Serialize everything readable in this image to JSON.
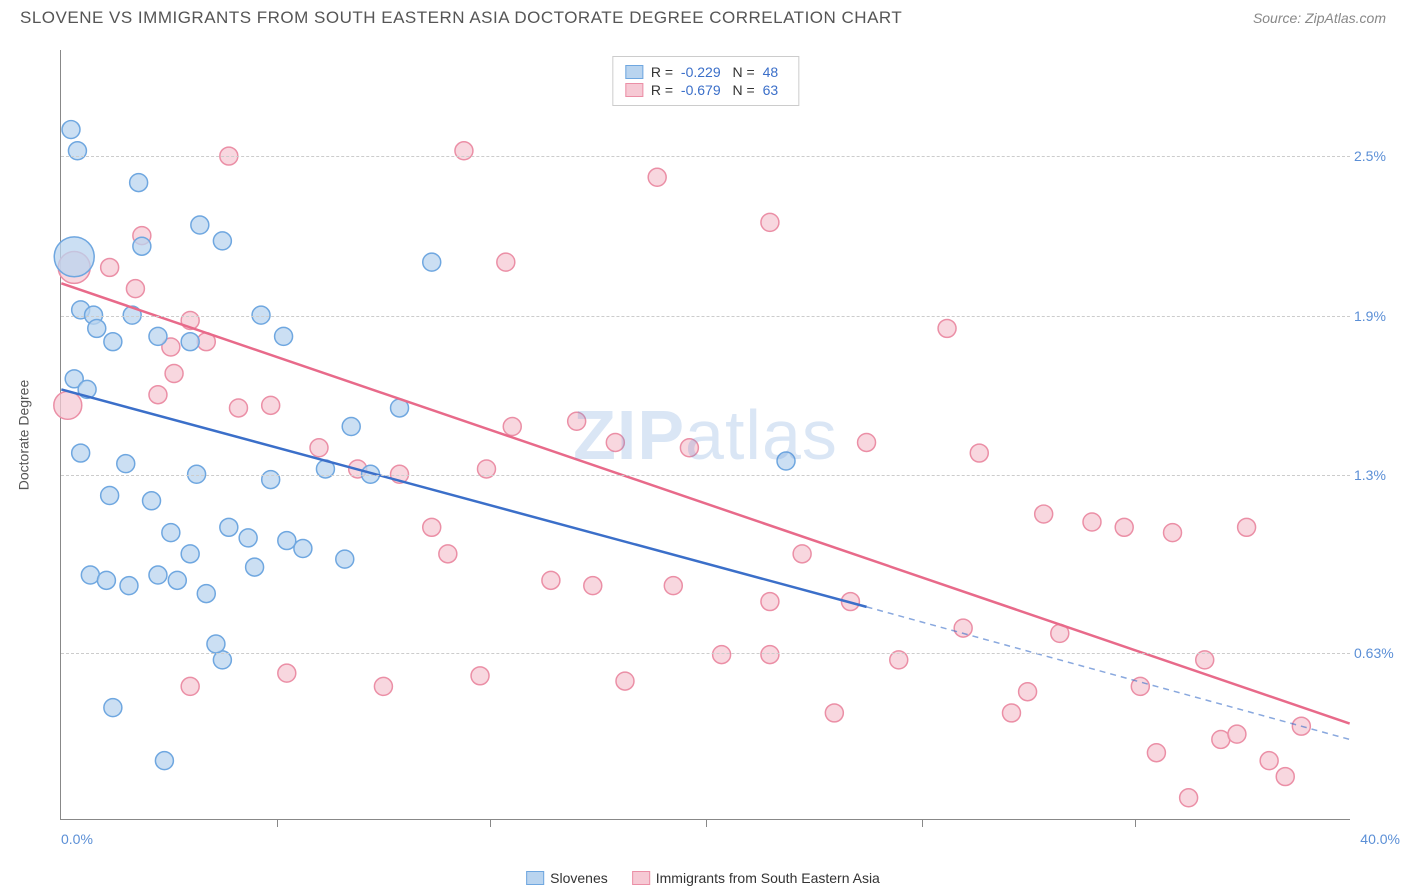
{
  "title": "SLOVENE VS IMMIGRANTS FROM SOUTH EASTERN ASIA DOCTORATE DEGREE CORRELATION CHART",
  "source_label": "Source:",
  "source_name": "ZipAtlas.com",
  "ylabel": "Doctorate Degree",
  "watermark": "ZIPatlas",
  "chart": {
    "type": "scatter",
    "xlim": [
      0,
      40
    ],
    "ylim": [
      0,
      2.9
    ],
    "x_min_label": "0.0%",
    "x_max_label": "40.0%",
    "xticks": [
      6.7,
      13.3,
      20,
      26.7,
      33.3
    ],
    "yticks": [
      {
        "v": 0.63,
        "label": "0.63%"
      },
      {
        "v": 1.3,
        "label": "1.3%"
      },
      {
        "v": 1.9,
        "label": "1.9%"
      },
      {
        "v": 2.5,
        "label": "2.5%"
      }
    ],
    "background_color": "#ffffff",
    "grid_color": "#cccccc",
    "series": [
      {
        "key": "slovenes",
        "label": "Slovenes",
        "fill": "#b9d4ef",
        "stroke": "#6fa7e0",
        "line_color": "#3b6fc9",
        "r_value": "-0.229",
        "n_value": "48",
        "trend": {
          "x1": 0,
          "y1": 1.62,
          "x2": 25,
          "y2": 0.8,
          "dash_x2": 40,
          "dash_y2": 0.3
        },
        "points": [
          {
            "x": 0.3,
            "y": 2.6,
            "r": 9
          },
          {
            "x": 0.5,
            "y": 2.52,
            "r": 9
          },
          {
            "x": 0.4,
            "y": 2.12,
            "r": 20
          },
          {
            "x": 2.4,
            "y": 2.4,
            "r": 9
          },
          {
            "x": 2.5,
            "y": 2.16,
            "r": 9
          },
          {
            "x": 4.3,
            "y": 2.24,
            "r": 9
          },
          {
            "x": 5.0,
            "y": 2.18,
            "r": 9
          },
          {
            "x": 0.6,
            "y": 1.92,
            "r": 9
          },
          {
            "x": 1.0,
            "y": 1.9,
            "r": 9
          },
          {
            "x": 0.4,
            "y": 1.66,
            "r": 9
          },
          {
            "x": 0.8,
            "y": 1.62,
            "r": 9
          },
          {
            "x": 1.1,
            "y": 1.85,
            "r": 9
          },
          {
            "x": 1.6,
            "y": 1.8,
            "r": 9
          },
          {
            "x": 2.2,
            "y": 1.9,
            "r": 9
          },
          {
            "x": 3.0,
            "y": 1.82,
            "r": 9
          },
          {
            "x": 4.0,
            "y": 1.8,
            "r": 9
          },
          {
            "x": 6.2,
            "y": 1.9,
            "r": 9
          },
          {
            "x": 6.9,
            "y": 1.82,
            "r": 9
          },
          {
            "x": 0.6,
            "y": 1.38,
            "r": 9
          },
          {
            "x": 1.5,
            "y": 1.22,
            "r": 9
          },
          {
            "x": 2.0,
            "y": 1.34,
            "r": 9
          },
          {
            "x": 2.8,
            "y": 1.2,
            "r": 9
          },
          {
            "x": 3.4,
            "y": 1.08,
            "r": 9
          },
          {
            "x": 4.2,
            "y": 1.3,
            "r": 9
          },
          {
            "x": 4.0,
            "y": 1.0,
            "r": 9
          },
          {
            "x": 5.2,
            "y": 1.1,
            "r": 9
          },
          {
            "x": 5.8,
            "y": 1.06,
            "r": 9
          },
          {
            "x": 6.5,
            "y": 1.28,
            "r": 9
          },
          {
            "x": 7.0,
            "y": 1.05,
            "r": 9
          },
          {
            "x": 8.2,
            "y": 1.32,
            "r": 9
          },
          {
            "x": 9.0,
            "y": 1.48,
            "r": 9
          },
          {
            "x": 9.6,
            "y": 1.3,
            "r": 9
          },
          {
            "x": 10.5,
            "y": 1.55,
            "r": 9
          },
          {
            "x": 11.5,
            "y": 2.1,
            "r": 9
          },
          {
            "x": 0.9,
            "y": 0.92,
            "r": 9
          },
          {
            "x": 1.4,
            "y": 0.9,
            "r": 9
          },
          {
            "x": 2.1,
            "y": 0.88,
            "r": 9
          },
          {
            "x": 3.0,
            "y": 0.92,
            "r": 9
          },
          {
            "x": 3.6,
            "y": 0.9,
            "r": 9
          },
          {
            "x": 4.5,
            "y": 0.85,
            "r": 9
          },
          {
            "x": 5.0,
            "y": 0.6,
            "r": 9
          },
          {
            "x": 6.0,
            "y": 0.95,
            "r": 9
          },
          {
            "x": 7.5,
            "y": 1.02,
            "r": 9
          },
          {
            "x": 8.8,
            "y": 0.98,
            "r": 9
          },
          {
            "x": 1.6,
            "y": 0.42,
            "r": 9
          },
          {
            "x": 3.2,
            "y": 0.22,
            "r": 9
          },
          {
            "x": 4.8,
            "y": 0.66,
            "r": 9
          },
          {
            "x": 22.5,
            "y": 1.35,
            "r": 9
          }
        ]
      },
      {
        "key": "immigrants",
        "label": "Immigrants from South Eastern Asia",
        "fill": "#f6c9d4",
        "stroke": "#eb8fa6",
        "line_color": "#e86a8a",
        "r_value": "-0.679",
        "n_value": "63",
        "trend": {
          "x1": 0,
          "y1": 2.02,
          "x2": 40,
          "y2": 0.36
        },
        "points": [
          {
            "x": 0.4,
            "y": 2.08,
            "r": 16
          },
          {
            "x": 0.2,
            "y": 1.56,
            "r": 14
          },
          {
            "x": 1.5,
            "y": 2.08,
            "r": 9
          },
          {
            "x": 2.3,
            "y": 2.0,
            "r": 9
          },
          {
            "x": 2.5,
            "y": 2.2,
            "r": 9
          },
          {
            "x": 3.4,
            "y": 1.78,
            "r": 9
          },
          {
            "x": 4.0,
            "y": 1.88,
            "r": 9
          },
          {
            "x": 4.5,
            "y": 1.8,
            "r": 9
          },
          {
            "x": 5.2,
            "y": 2.5,
            "r": 9
          },
          {
            "x": 12.5,
            "y": 2.52,
            "r": 9
          },
          {
            "x": 18.5,
            "y": 2.42,
            "r": 9
          },
          {
            "x": 22.0,
            "y": 2.25,
            "r": 9
          },
          {
            "x": 13.8,
            "y": 2.1,
            "r": 9
          },
          {
            "x": 3.0,
            "y": 1.6,
            "r": 9
          },
          {
            "x": 3.5,
            "y": 1.68,
            "r": 9
          },
          {
            "x": 5.5,
            "y": 1.55,
            "r": 9
          },
          {
            "x": 6.5,
            "y": 1.56,
            "r": 9
          },
          {
            "x": 8.0,
            "y": 1.4,
            "r": 9
          },
          {
            "x": 9.2,
            "y": 1.32,
            "r": 9
          },
          {
            "x": 10.5,
            "y": 1.3,
            "r": 9
          },
          {
            "x": 11.5,
            "y": 1.1,
            "r": 9
          },
          {
            "x": 12.0,
            "y": 1.0,
            "r": 9
          },
          {
            "x": 13.2,
            "y": 1.32,
            "r": 9
          },
          {
            "x": 14.0,
            "y": 1.48,
            "r": 9
          },
          {
            "x": 15.2,
            "y": 0.9,
            "r": 9
          },
          {
            "x": 16.0,
            "y": 1.5,
            "r": 9
          },
          {
            "x": 16.5,
            "y": 0.88,
            "r": 9
          },
          {
            "x": 17.2,
            "y": 1.42,
            "r": 9
          },
          {
            "x": 19.5,
            "y": 1.4,
            "r": 9
          },
          {
            "x": 20.5,
            "y": 0.62,
            "r": 9
          },
          {
            "x": 22.0,
            "y": 0.82,
            "r": 9
          },
          {
            "x": 22.0,
            "y": 0.62,
            "r": 9
          },
          {
            "x": 23.0,
            "y": 1.0,
            "r": 9
          },
          {
            "x": 24.5,
            "y": 0.82,
            "r": 9
          },
          {
            "x": 25.0,
            "y": 1.42,
            "r": 9
          },
          {
            "x": 26.0,
            "y": 0.6,
            "r": 9
          },
          {
            "x": 27.5,
            "y": 1.85,
            "r": 9
          },
          {
            "x": 28.0,
            "y": 0.72,
            "r": 9
          },
          {
            "x": 28.5,
            "y": 1.38,
            "r": 9
          },
          {
            "x": 29.5,
            "y": 0.4,
            "r": 9
          },
          {
            "x": 30.0,
            "y": 0.48,
            "r": 9
          },
          {
            "x": 30.5,
            "y": 1.15,
            "r": 9
          },
          {
            "x": 31.0,
            "y": 0.7,
            "r": 9
          },
          {
            "x": 32.0,
            "y": 1.12,
            "r": 9
          },
          {
            "x": 33.0,
            "y": 1.1,
            "r": 9
          },
          {
            "x": 33.5,
            "y": 0.5,
            "r": 9
          },
          {
            "x": 34.0,
            "y": 0.25,
            "r": 9
          },
          {
            "x": 34.5,
            "y": 1.08,
            "r": 9
          },
          {
            "x": 35.5,
            "y": 0.6,
            "r": 9
          },
          {
            "x": 36.0,
            "y": 0.3,
            "r": 9
          },
          {
            "x": 36.5,
            "y": 0.32,
            "r": 9
          },
          {
            "x": 36.8,
            "y": 1.1,
            "r": 9
          },
          {
            "x": 37.5,
            "y": 0.22,
            "r": 9
          },
          {
            "x": 38.0,
            "y": 0.16,
            "r": 9
          },
          {
            "x": 38.5,
            "y": 0.35,
            "r": 9
          },
          {
            "x": 35.0,
            "y": 0.08,
            "r": 9
          },
          {
            "x": 4.0,
            "y": 0.5,
            "r": 9
          },
          {
            "x": 7.0,
            "y": 0.55,
            "r": 9
          },
          {
            "x": 10.0,
            "y": 0.5,
            "r": 9
          },
          {
            "x": 13.0,
            "y": 0.54,
            "r": 9
          },
          {
            "x": 17.5,
            "y": 0.52,
            "r": 9
          },
          {
            "x": 19.0,
            "y": 0.88,
            "r": 9
          },
          {
            "x": 24.0,
            "y": 0.4,
            "r": 9
          }
        ]
      }
    ]
  }
}
